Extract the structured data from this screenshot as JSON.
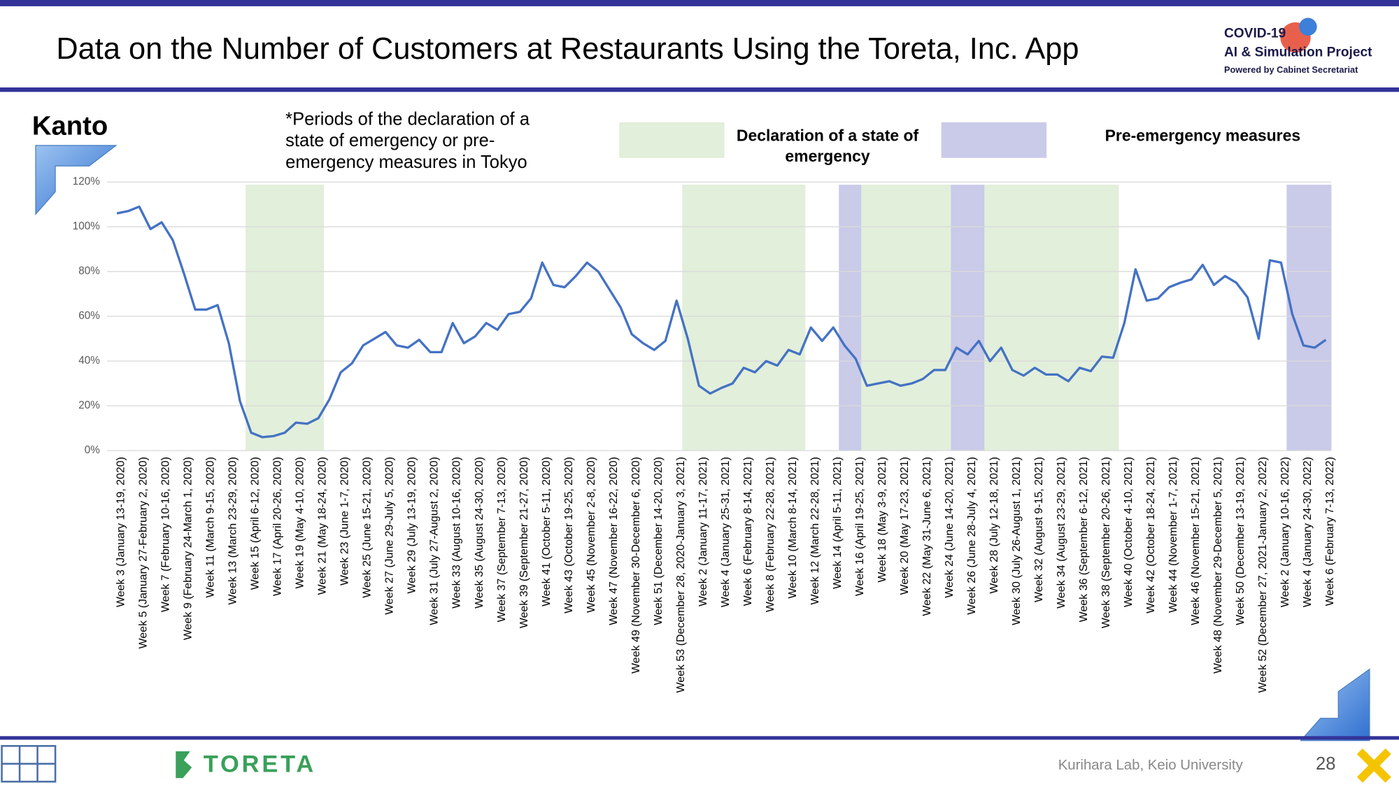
{
  "header": {
    "title": "Data on the Number of Customers at Restaurants Using the Toreta, Inc. App",
    "logo": [
      "COVID-19",
      "AI & Simulation Project",
      "Powered by Cabinet Secretariat"
    ]
  },
  "chart_data": {
    "type": "line",
    "subtitle": "Kanto",
    "annotation": "*Periods of the declaration of a state of emergency or pre-emergency measures in Tokyo",
    "color": "#4472c4",
    "grid": true,
    "ylim": [
      0,
      120
    ],
    "yticks": [
      {
        "value": 0,
        "label": "0%"
      },
      {
        "value": 20,
        "label": "20%"
      },
      {
        "value": 40,
        "label": "40%"
      },
      {
        "value": 60,
        "label": "60%"
      },
      {
        "value": 80,
        "label": "80%"
      },
      {
        "value": 100,
        "label": "100%"
      },
      {
        "value": 120,
        "label": "120%"
      }
    ],
    "categories": [
      "Week 3 (January 13-19, 2020)",
      null,
      "Week 5 (January 27-February 2, 2020)",
      null,
      "Week 7 (February 10-16, 2020)",
      null,
      "Week 9 (February 24-March 1, 2020)",
      null,
      "Week 11 (March 9-15, 2020)",
      null,
      "Week 13 (March 23-29, 2020)",
      null,
      "Week 15 (April 6-12, 2020)",
      null,
      "Week 17 (April 20-26, 2020)",
      null,
      "Week 19 (May 4-10, 2020)",
      null,
      "Week 21 (May 18-24, 2020)",
      null,
      "Week 23 (June 1-7, 2020)",
      null,
      "Week 25 (June 15-21, 2020)",
      null,
      "Week 27 (June 29-July 5, 2020)",
      null,
      "Week 29 (July 13-19, 2020)",
      null,
      "Week 31 (July 27-August 2, 2020)",
      null,
      "Week 33 (August 10-16, 2020)",
      null,
      "Week 35 (August 24-30, 2020)",
      null,
      "Week 37 (September 7-13, 2020)",
      null,
      "Week 39 (September 21-27, 2020)",
      null,
      "Week 41 (October 5-11, 2020)",
      null,
      "Week 43 (October 19-25, 2020)",
      null,
      "Week 45 (November 2-8, 2020)",
      null,
      "Week 47 (November 16-22, 2020)",
      null,
      "Week 49 (November 30-December 6, 2020)",
      null,
      "Week 51 (December 14-20, 2020)",
      null,
      "Week 53 (December 28, 2020-January 3, 2021)",
      null,
      "Week 2 (January 11-17, 2021)",
      null,
      "Week 4 (January 25-31, 2021)",
      null,
      "Week 6 (February 8-14, 2021)",
      null,
      "Week 8 (February 22-28, 2021)",
      null,
      "Week 10 (March 8-14, 2021)",
      null,
      "Week 12 (March 22-28, 2021)",
      null,
      "Week 14 (April 5-11, 2021)",
      null,
      "Week 16 (April 19-25, 2021)",
      null,
      "Week 18 (May 3-9, 2021)",
      null,
      "Week 20 (May 17-23, 2021)",
      null,
      "Week 22 (May 31-June 6, 2021)",
      null,
      "Week 24 (June 14-20, 2021)",
      null,
      "Week 26 (June 28-July 4, 2021)",
      null,
      "Week 28 (July 12-18, 2021)",
      null,
      "Week 30 (July 26-August 1, 2021)",
      null,
      "Week 32 (August 9-15, 2021)",
      null,
      "Week 34 (August 23-29, 2021)",
      null,
      "Week 36 (September 6-12, 2021)",
      null,
      "Week 38 (September 20-26, 2021)",
      null,
      "Week 40 (October 4-10, 2021)",
      null,
      "Week 42 (October 18-24, 2021)",
      null,
      "Week 44 (November 1-7, 2021)",
      null,
      "Week 46 (November 15-21, 2021)",
      null,
      "Week 48 (November 29-December 5, 2021)",
      null,
      "Week 50 (December 13-19, 2021)",
      null,
      "Week 52 (December 27, 2021-January 2, 2022)",
      null,
      "Week 2 (January 10-16, 2022)",
      null,
      "Week 4 (January 24-30, 2022)",
      null,
      "Week 6 (February 7-13, 2022)"
    ],
    "values": [
      106,
      107,
      109,
      99,
      102,
      94,
      79,
      63,
      63,
      65,
      48,
      22,
      8,
      6,
      6.5,
      8,
      12.5,
      12,
      14.5,
      23,
      35,
      39,
      47,
      50,
      53,
      47,
      46,
      49.5,
      44,
      44,
      57,
      48,
      51,
      57,
      54,
      61,
      62,
      68,
      84,
      74,
      73,
      78,
      84,
      80,
      72,
      64,
      52,
      48,
      45,
      49,
      67,
      50,
      29,
      25.5,
      28,
      30,
      37,
      35,
      40,
      38,
      45,
      43,
      55,
      49,
      55,
      47,
      41,
      29,
      30,
      31,
      29,
      30,
      32,
      36,
      36,
      46,
      43,
      49,
      40,
      46,
      36,
      33.5,
      37,
      34,
      34,
      31,
      37,
      35.5,
      42,
      41.5,
      57,
      81,
      67,
      68,
      73,
      75,
      76.5,
      83,
      74,
      78,
      75,
      68.5,
      50,
      85,
      84,
      61,
      47,
      46,
      49.5
    ],
    "bands": [
      {
        "name": "Declaration of a state of emergency",
        "color": "#e2efda",
        "periods": [
          [
            12,
            18
          ],
          [
            51,
            61
          ],
          [
            67,
            74
          ],
          [
            78,
            89
          ]
        ]
      },
      {
        "name": "Pre-emergency measures",
        "color": "#cacae9",
        "periods": [
          [
            65,
            66
          ],
          [
            75,
            77
          ],
          [
            105,
            108
          ]
        ]
      }
    ]
  },
  "footer": {
    "brand": "TORETA",
    "credit": "Kurihara Lab, Keio University",
    "page": 28
  }
}
